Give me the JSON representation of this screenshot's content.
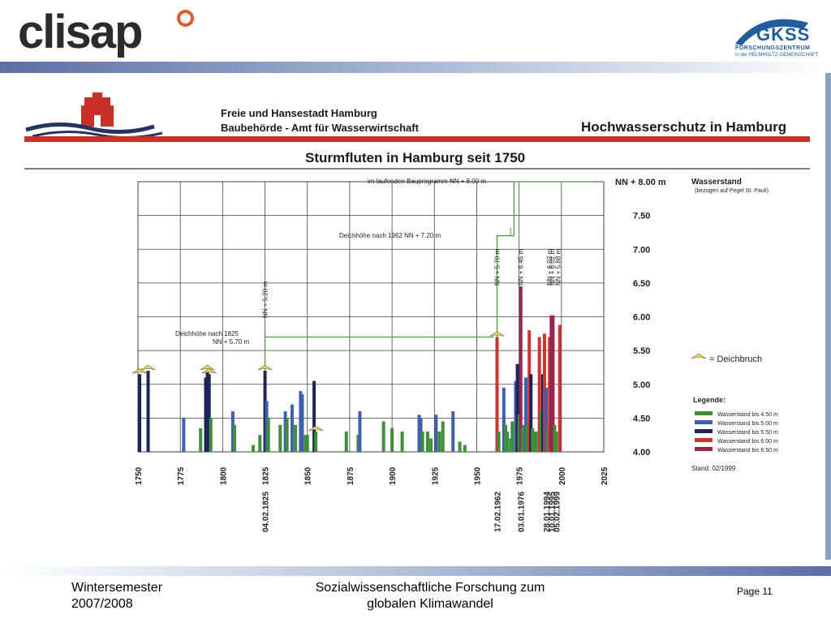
{
  "slide": {
    "logo_left": "clisap",
    "logo_right_name": "GKSS",
    "logo_right_sub1": "FORSCHUNGSZENTRUM",
    "logo_right_sub2": "in der HELMHOLTZ-GEMEINSCHAFT",
    "footer_left_line1": "Wintersemester",
    "footer_left_line2": "2007/2008",
    "footer_center_line1": "Sozialwissenschaftliche Forschung zum",
    "footer_center_line2": "globalen Klimawandel",
    "page": "Page 11"
  },
  "document": {
    "org_line1": "Freie und Hansestadt Hamburg",
    "org_line2": "Baubehörde - Amt für Wasserwirtschaft",
    "header_title": "Hochwasserschutz in Hamburg",
    "colors": {
      "red": "#c8302a",
      "navy": "#26335f"
    }
  },
  "chart_data": {
    "type": "bar",
    "title": "Sturmfluten in Hamburg seit 1750",
    "xlim": [
      1750,
      2025
    ],
    "ylim": [
      4.0,
      8.0
    ],
    "x_ticks": [
      1750,
      1775,
      1800,
      1825,
      1850,
      1875,
      1900,
      1925,
      1950,
      1975,
      2000,
      2025
    ],
    "y_ticks": [
      4.0,
      4.5,
      5.0,
      5.5,
      6.0,
      6.5,
      7.0,
      7.5
    ],
    "y_tick_labels": [
      "4.00",
      "4.50",
      "5.00",
      "5.50",
      "6.00",
      "6.50",
      "7.00",
      "7.50"
    ],
    "y_top_label": "NN + 8.00 m",
    "ylabel": "Wasserstand",
    "ylabel_sub": "(bezogen auf Pegel St. Pauli)",
    "legend_title": "Legende:",
    "legend": [
      {
        "name": "Wasserstand bis 4.50 m",
        "color": "#3f8f3a"
      },
      {
        "name": "Wasserstand bis 5.00 m",
        "color": "#3f5fb0"
      },
      {
        "name": "Wasserstand bis 5.50 m",
        "color": "#1e2457"
      },
      {
        "name": "Wasserstand bis 6.00 m",
        "color": "#cc3333"
      },
      {
        "name": "Wasserstand bis 6.50 m",
        "color": "#9a2450"
      }
    ],
    "deichbruch_label": "= Deichbruch",
    "stand": "Stand: 02/1999",
    "event_dates": [
      "04.02.1825",
      "17.02.1962",
      "03.01.1976",
      "28.01.1994",
      "10.01.1995",
      "05.02.1999"
    ],
    "dike_levels": [
      {
        "label": "Deichhöhe nach 1825",
        "label2": "NN + 5.70 m",
        "from": 1825,
        "to": 1960,
        "level": 5.7
      },
      {
        "label": "Deichhöhe nach 1962 NN + 7.20 m",
        "from": 1962,
        "to": 1972,
        "level": 7.2
      },
      {
        "label": "im laufenden Bauprogramm NN + 8.00 m",
        "from": 1972,
        "to": 2020,
        "level": 8.0
      }
    ],
    "vertical_annotations": [
      {
        "year": 1825,
        "text": "NN + 5.20 m"
      },
      {
        "year": 1962,
        "text": "NN + 5.70 m"
      },
      {
        "year": 1976,
        "text": "NN + 6.45 m"
      },
      {
        "year": 1994,
        "text": "NN + 6.02 m"
      },
      {
        "year": 1995,
        "text": "NN + 6.02 m"
      },
      {
        "year": 1999,
        "text": "NN + 5.88 m"
      }
    ],
    "deichbruch_years": [
      1751,
      1756,
      1791,
      1792,
      1825,
      1855,
      1962
    ],
    "bars": [
      {
        "year": 1751,
        "value": 5.15,
        "color": "#1e2457"
      },
      {
        "year": 1756,
        "value": 5.2,
        "color": "#1e2457"
      },
      {
        "year": 1777,
        "value": 4.5,
        "color": "#3f5fb0"
      },
      {
        "year": 1787,
        "value": 4.35,
        "color": "#3f8f3a"
      },
      {
        "year": 1790,
        "value": 5.1,
        "color": "#1e2457"
      },
      {
        "year": 1791,
        "value": 5.2,
        "color": "#1e2457"
      },
      {
        "year": 1792,
        "value": 5.15,
        "color": "#1e2457"
      },
      {
        "year": 1793,
        "value": 4.5,
        "color": "#3f8f3a"
      },
      {
        "year": 1806,
        "value": 4.6,
        "color": "#3f5fb0"
      },
      {
        "year": 1807,
        "value": 4.4,
        "color": "#3f8f3a"
      },
      {
        "year": 1818,
        "value": 4.1,
        "color": "#3f8f3a"
      },
      {
        "year": 1822,
        "value": 4.25,
        "color": "#3f8f3a"
      },
      {
        "year": 1825,
        "value": 5.2,
        "color": "#1e2457"
      },
      {
        "year": 1826,
        "value": 4.75,
        "color": "#3f5fb0"
      },
      {
        "year": 1827,
        "value": 4.5,
        "color": "#3f8f3a"
      },
      {
        "year": 1834,
        "value": 4.4,
        "color": "#3f8f3a"
      },
      {
        "year": 1837,
        "value": 4.6,
        "color": "#3f5fb0"
      },
      {
        "year": 1838,
        "value": 4.5,
        "color": "#3f8f3a"
      },
      {
        "year": 1841,
        "value": 4.7,
        "color": "#3f5fb0"
      },
      {
        "year": 1843,
        "value": 4.4,
        "color": "#3f8f3a"
      },
      {
        "year": 1846,
        "value": 4.9,
        "color": "#3f5fb0"
      },
      {
        "year": 1847,
        "value": 4.85,
        "color": "#3f5fb0"
      },
      {
        "year": 1849,
        "value": 4.25,
        "color": "#3f8f3a"
      },
      {
        "year": 1850,
        "value": 4.25,
        "color": "#3f8f3a"
      },
      {
        "year": 1854,
        "value": 5.05,
        "color": "#1e2457"
      },
      {
        "year": 1855,
        "value": 4.3,
        "color": "#3f8f3a"
      },
      {
        "year": 1873,
        "value": 4.3,
        "color": "#3f8f3a"
      },
      {
        "year": 1880,
        "value": 4.25,
        "color": "#3f8f3a"
      },
      {
        "year": 1881,
        "value": 4.6,
        "color": "#3f5fb0"
      },
      {
        "year": 1895,
        "value": 4.45,
        "color": "#3f8f3a"
      },
      {
        "year": 1900,
        "value": 4.35,
        "color": "#3f8f3a"
      },
      {
        "year": 1906,
        "value": 4.3,
        "color": "#3f8f3a"
      },
      {
        "year": 1916,
        "value": 4.55,
        "color": "#3f5fb0"
      },
      {
        "year": 1917,
        "value": 4.5,
        "color": "#3f5fb0"
      },
      {
        "year": 1918,
        "value": 4.3,
        "color": "#3f8f3a"
      },
      {
        "year": 1921,
        "value": 4.3,
        "color": "#3f8f3a"
      },
      {
        "year": 1923,
        "value": 4.2,
        "color": "#3f8f3a"
      },
      {
        "year": 1926,
        "value": 4.55,
        "color": "#3f5fb0"
      },
      {
        "year": 1928,
        "value": 4.3,
        "color": "#3f8f3a"
      },
      {
        "year": 1930,
        "value": 4.45,
        "color": "#3f8f3a"
      },
      {
        "year": 1936,
        "value": 4.6,
        "color": "#3f5fb0"
      },
      {
        "year": 1940,
        "value": 4.15,
        "color": "#3f8f3a"
      },
      {
        "year": 1943,
        "value": 4.1,
        "color": "#3f8f3a"
      },
      {
        "year": 1962,
        "value": 5.7,
        "color": "#cc3333"
      },
      {
        "year": 1963,
        "value": 4.3,
        "color": "#3f8f3a"
      },
      {
        "year": 1966,
        "value": 4.95,
        "color": "#3f5fb0"
      },
      {
        "year": 1967,
        "value": 4.4,
        "color": "#3f8f3a"
      },
      {
        "year": 1968,
        "value": 4.3,
        "color": "#3f8f3a"
      },
      {
        "year": 1970,
        "value": 4.2,
        "color": "#3f8f3a"
      },
      {
        "year": 1971,
        "value": 4.45,
        "color": "#3f8f3a"
      },
      {
        "year": 1973,
        "value": 5.05,
        "color": "#3f5fb0"
      },
      {
        "year": 1974,
        "value": 5.3,
        "color": "#1e2457"
      },
      {
        "year": 1975,
        "value": 4.55,
        "color": "#3f8f3a"
      },
      {
        "year": 1976,
        "value": 6.45,
        "color": "#9a2450"
      },
      {
        "year": 1977,
        "value": 4.35,
        "color": "#3f8f3a"
      },
      {
        "year": 1978,
        "value": 4.4,
        "color": "#3f8f3a"
      },
      {
        "year": 1979,
        "value": 5.1,
        "color": "#3f5fb0"
      },
      {
        "year": 1980,
        "value": 4.4,
        "color": "#3f8f3a"
      },
      {
        "year": 1981,
        "value": 5.8,
        "color": "#cc3333"
      },
      {
        "year": 1982,
        "value": 5.15,
        "color": "#1e2457"
      },
      {
        "year": 1983,
        "value": 4.35,
        "color": "#3f8f3a"
      },
      {
        "year": 1984,
        "value": 4.3,
        "color": "#3f8f3a"
      },
      {
        "year": 1985,
        "value": 4.3,
        "color": "#3f8f3a"
      },
      {
        "year": 1987,
        "value": 5.7,
        "color": "#cc3333"
      },
      {
        "year": 1988,
        "value": 4.6,
        "color": "#3f8f3a"
      },
      {
        "year": 1989,
        "value": 5.15,
        "color": "#1e2457"
      },
      {
        "year": 1990,
        "value": 5.75,
        "color": "#cc3333"
      },
      {
        "year": 1991,
        "value": 4.95,
        "color": "#3f5fb0"
      },
      {
        "year": 1992,
        "value": 4.4,
        "color": "#3f8f3a"
      },
      {
        "year": 1993,
        "value": 5.7,
        "color": "#cc3333"
      },
      {
        "year": 1994,
        "value": 6.02,
        "color": "#9a2450"
      },
      {
        "year": 1995,
        "value": 6.02,
        "color": "#9a2450"
      },
      {
        "year": 1996,
        "value": 4.4,
        "color": "#3f8f3a"
      },
      {
        "year": 1997,
        "value": 4.3,
        "color": "#3f8f3a"
      },
      {
        "year": 1999,
        "value": 5.88,
        "color": "#cc3333"
      }
    ]
  }
}
